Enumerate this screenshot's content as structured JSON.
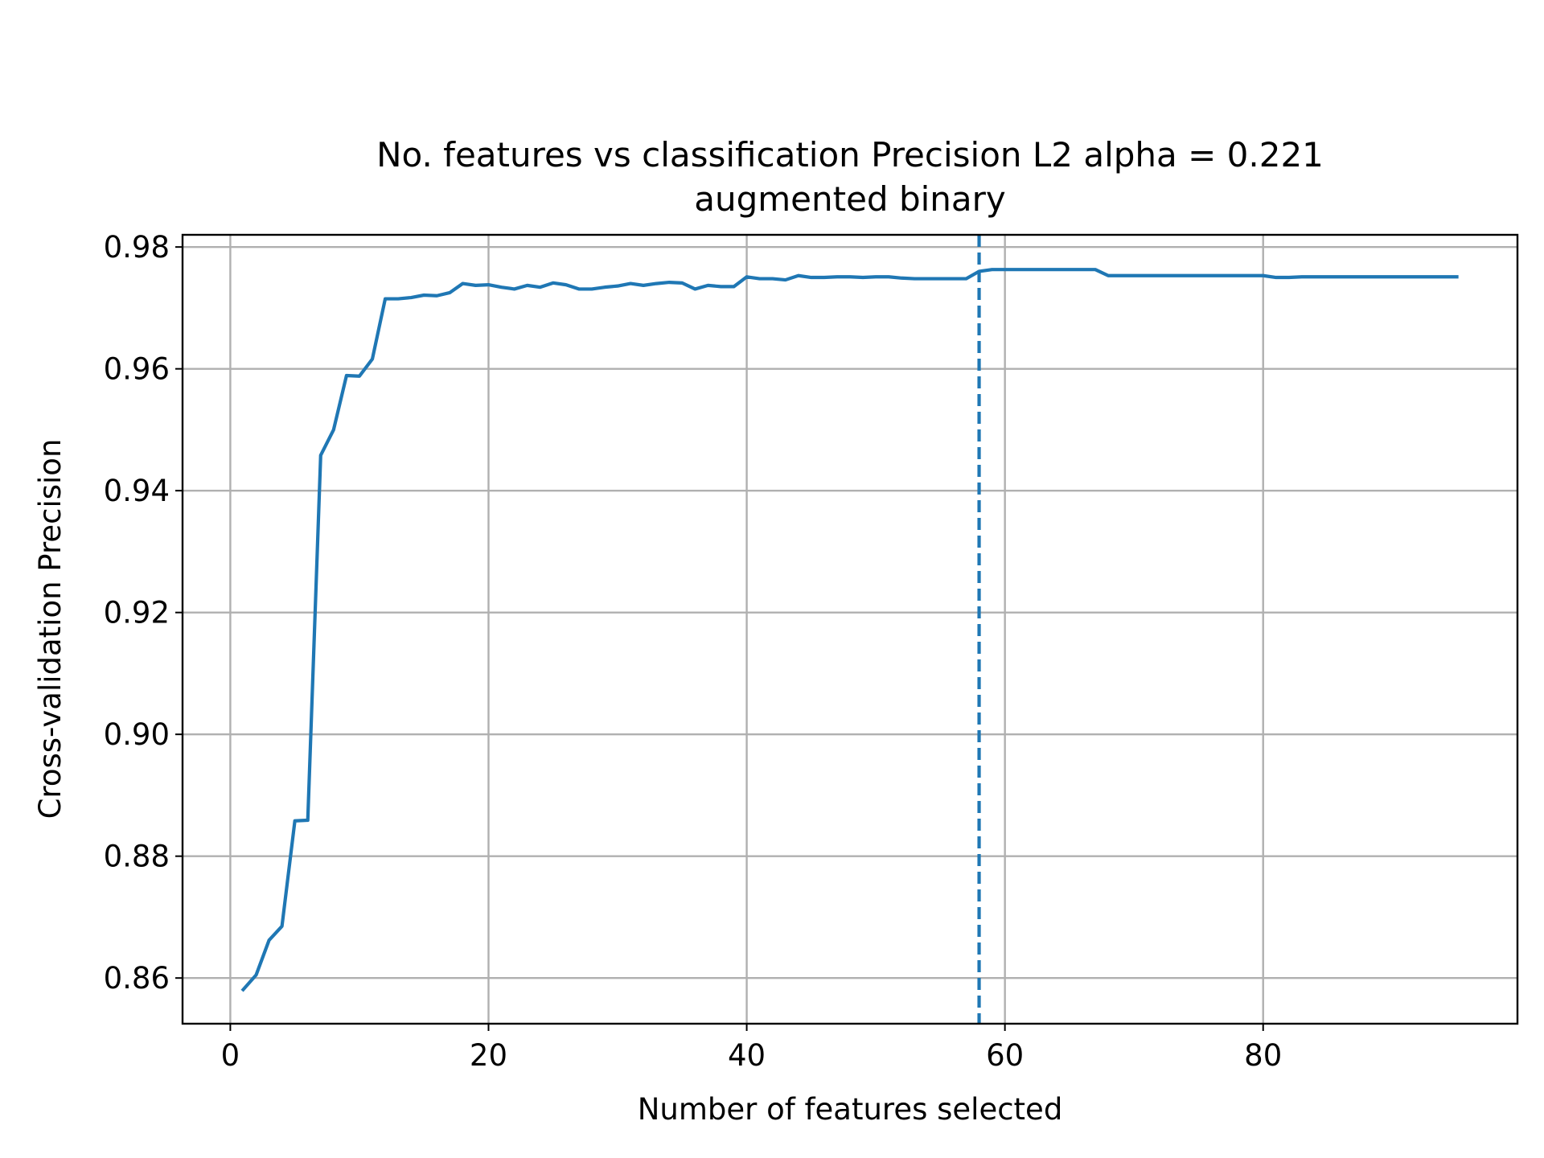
{
  "chart_data": {
    "type": "line",
    "title": [
      "No. features vs classification Precision L2 alpha = 0.221",
      "augmented binary"
    ],
    "xlabel": "Number of features selected",
    "ylabel": "Cross-validation Precision",
    "xlim": [
      -3.7,
      99.7
    ],
    "ylim": [
      0.8525,
      0.982
    ],
    "xticks": [
      0,
      20,
      40,
      60,
      80
    ],
    "xtick_labels": [
      "0",
      "20",
      "40",
      "60",
      "80"
    ],
    "yticks": [
      0.86,
      0.88,
      0.9,
      0.92,
      0.94,
      0.96,
      0.98
    ],
    "ytick_labels": [
      "0.86",
      "0.88",
      "0.90",
      "0.92",
      "0.94",
      "0.96",
      "0.98"
    ],
    "grid": true,
    "colors": {
      "series": "#1f77b4",
      "grid": "#b0b0b0",
      "frame": "#000000"
    },
    "series": [
      {
        "x": [
          1,
          2,
          3,
          4,
          5,
          6,
          7,
          8,
          9,
          10,
          11,
          12,
          13,
          14,
          15,
          16,
          17,
          18,
          19,
          20,
          21,
          22,
          23,
          24,
          25,
          26,
          27,
          28,
          29,
          30,
          31,
          32,
          33,
          34,
          35,
          36,
          37,
          38,
          39,
          40,
          41,
          42,
          43,
          44,
          45,
          46,
          47,
          48,
          49,
          50,
          51,
          52,
          53,
          54,
          55,
          56,
          57,
          58,
          59,
          60,
          61,
          62,
          63,
          64,
          65,
          66,
          67,
          68,
          69,
          70,
          71,
          72,
          73,
          74,
          75,
          76,
          77,
          78,
          79,
          80,
          81,
          82,
          83,
          84,
          85,
          86,
          87,
          88,
          89,
          90,
          91,
          92,
          93,
          94,
          95
        ],
        "values": [
          0.8581,
          0.8605,
          0.8662,
          0.8685,
          0.8858,
          0.8859,
          0.9458,
          0.95,
          0.9589,
          0.9588,
          0.9616,
          0.9715,
          0.9715,
          0.9717,
          0.9721,
          0.972,
          0.9725,
          0.974,
          0.9737,
          0.9738,
          0.9734,
          0.9731,
          0.9737,
          0.9734,
          0.9741,
          0.9738,
          0.9731,
          0.9731,
          0.9734,
          0.9736,
          0.974,
          0.9737,
          0.974,
          0.9742,
          0.9741,
          0.9731,
          0.9737,
          0.9735,
          0.9735,
          0.9751,
          0.9748,
          0.9748,
          0.9746,
          0.9753,
          0.975,
          0.975,
          0.9751,
          0.9751,
          0.975,
          0.9751,
          0.9751,
          0.9749,
          0.9748,
          0.9748,
          0.9748,
          0.9748,
          0.9748,
          0.976,
          0.9763,
          0.9763,
          0.9763,
          0.9763,
          0.9763,
          0.9763,
          0.9763,
          0.9763,
          0.9763,
          0.9753,
          0.9753,
          0.9753,
          0.9753,
          0.9753,
          0.9753,
          0.9753,
          0.9753,
          0.9753,
          0.9753,
          0.9753,
          0.9753,
          0.9753,
          0.975,
          0.975,
          0.9751,
          0.9751,
          0.9751,
          0.9751,
          0.9751,
          0.9751,
          0.9751,
          0.9751,
          0.9751,
          0.9751,
          0.9751,
          0.9751,
          0.9751
        ]
      }
    ],
    "vline": {
      "x": 58,
      "style": "dashed"
    }
  }
}
